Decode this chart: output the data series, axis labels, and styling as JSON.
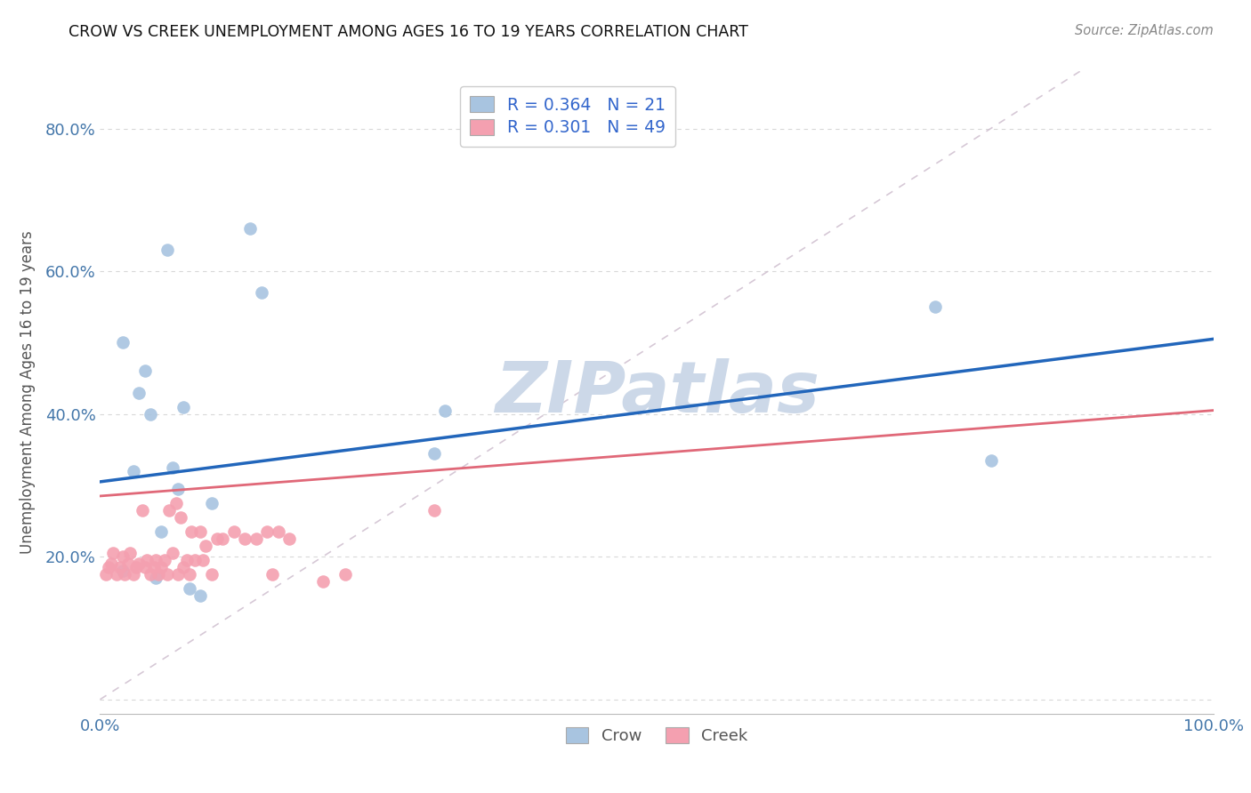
{
  "title": "CROW VS CREEK UNEMPLOYMENT AMONG AGES 16 TO 19 YEARS CORRELATION CHART",
  "source": "Source: ZipAtlas.com",
  "ylabel": "Unemployment Among Ages 16 to 19 years",
  "xlim": [
    0,
    1.0
  ],
  "ylim": [
    -0.02,
    0.88
  ],
  "crow_R": 0.364,
  "crow_N": 21,
  "creek_R": 0.301,
  "creek_N": 49,
  "crow_color": "#a8c4e0",
  "creek_color": "#f4a0b0",
  "crow_line_color": "#2266bb",
  "creek_line_color": "#e06878",
  "diagonal_color": "#ccbbcc",
  "background_color": "#ffffff",
  "grid_color": "#d8d8d8",
  "legend_text_color": "#3366cc",
  "watermark": "ZIPatlas",
  "watermark_color": "#ccd8e8",
  "crow_points_x": [
    0.02,
    0.02,
    0.03,
    0.035,
    0.04,
    0.045,
    0.05,
    0.055,
    0.06,
    0.065,
    0.07,
    0.075,
    0.08,
    0.09,
    0.1,
    0.135,
    0.145,
    0.3,
    0.31,
    0.75,
    0.8
  ],
  "crow_points_y": [
    0.5,
    0.18,
    0.32,
    0.43,
    0.46,
    0.4,
    0.17,
    0.235,
    0.63,
    0.325,
    0.295,
    0.41,
    0.155,
    0.145,
    0.275,
    0.66,
    0.57,
    0.345,
    0.405,
    0.55,
    0.335
  ],
  "creek_points_x": [
    0.005,
    0.008,
    0.01,
    0.012,
    0.015,
    0.018,
    0.02,
    0.022,
    0.025,
    0.027,
    0.03,
    0.032,
    0.035,
    0.038,
    0.04,
    0.042,
    0.045,
    0.048,
    0.05,
    0.052,
    0.055,
    0.058,
    0.06,
    0.062,
    0.065,
    0.068,
    0.07,
    0.072,
    0.075,
    0.078,
    0.08,
    0.082,
    0.085,
    0.09,
    0.092,
    0.095,
    0.1,
    0.105,
    0.11,
    0.12,
    0.13,
    0.14,
    0.15,
    0.155,
    0.16,
    0.17,
    0.2,
    0.22,
    0.3
  ],
  "creek_points_y": [
    0.175,
    0.185,
    0.19,
    0.205,
    0.175,
    0.185,
    0.2,
    0.175,
    0.19,
    0.205,
    0.175,
    0.185,
    0.19,
    0.265,
    0.185,
    0.195,
    0.175,
    0.185,
    0.195,
    0.175,
    0.185,
    0.195,
    0.175,
    0.265,
    0.205,
    0.275,
    0.175,
    0.255,
    0.185,
    0.195,
    0.175,
    0.235,
    0.195,
    0.235,
    0.195,
    0.215,
    0.175,
    0.225,
    0.225,
    0.235,
    0.225,
    0.225,
    0.235,
    0.175,
    0.235,
    0.225,
    0.165,
    0.175,
    0.265
  ],
  "crow_line_x": [
    0.0,
    1.0
  ],
  "crow_line_y": [
    0.305,
    0.505
  ],
  "creek_line_x": [
    0.0,
    1.0
  ],
  "creek_line_y": [
    0.285,
    0.405
  ]
}
